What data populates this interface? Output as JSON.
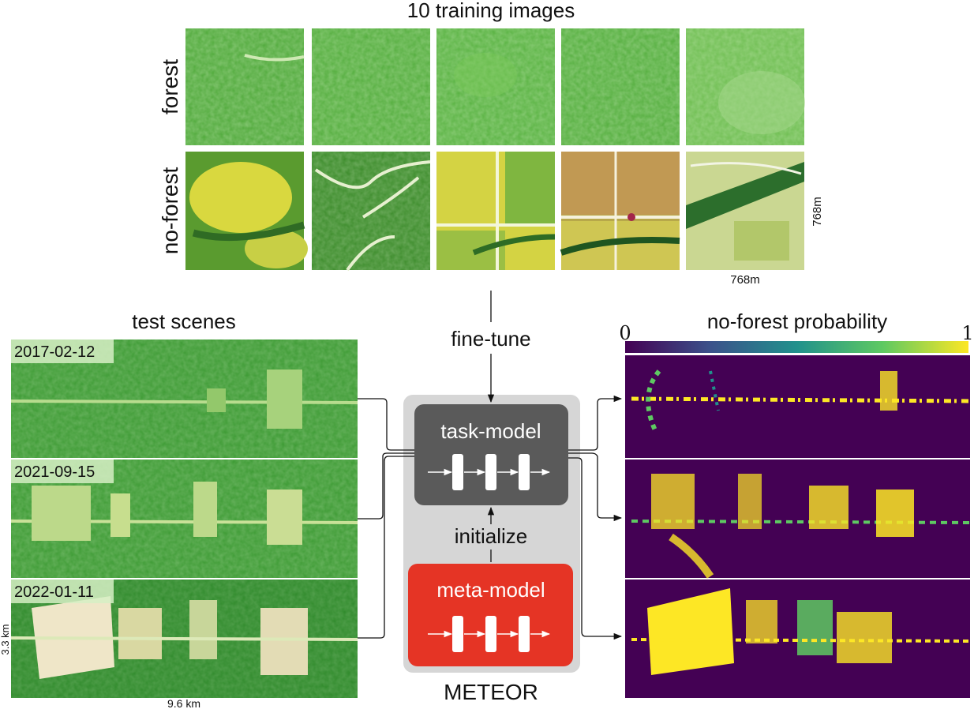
{
  "training": {
    "title": "10 training images",
    "row_labels": [
      "forest",
      "no-forest"
    ],
    "scale_x": "768m",
    "scale_y": "768m"
  },
  "test": {
    "title": "test scenes",
    "dates": [
      "2017-02-12",
      "2021-09-15",
      "2022-01-11"
    ],
    "scale_x": "9.6 km",
    "scale_y": "3.3 km"
  },
  "center": {
    "fine_tune": "fine-tune",
    "task_model": "task-model",
    "initialize": "initialize",
    "meta_model": "meta-model",
    "meteor": "METEOR"
  },
  "output": {
    "title": "no-forest probability",
    "colorbar_min": "0",
    "colorbar_max": "1"
  },
  "colors": {
    "task_model": "#5a5a5a",
    "meta_model": "#e53425",
    "meteor_box": "#d6d6d6",
    "viridis_low": "#440154",
    "viridis_high": "#fde725"
  }
}
